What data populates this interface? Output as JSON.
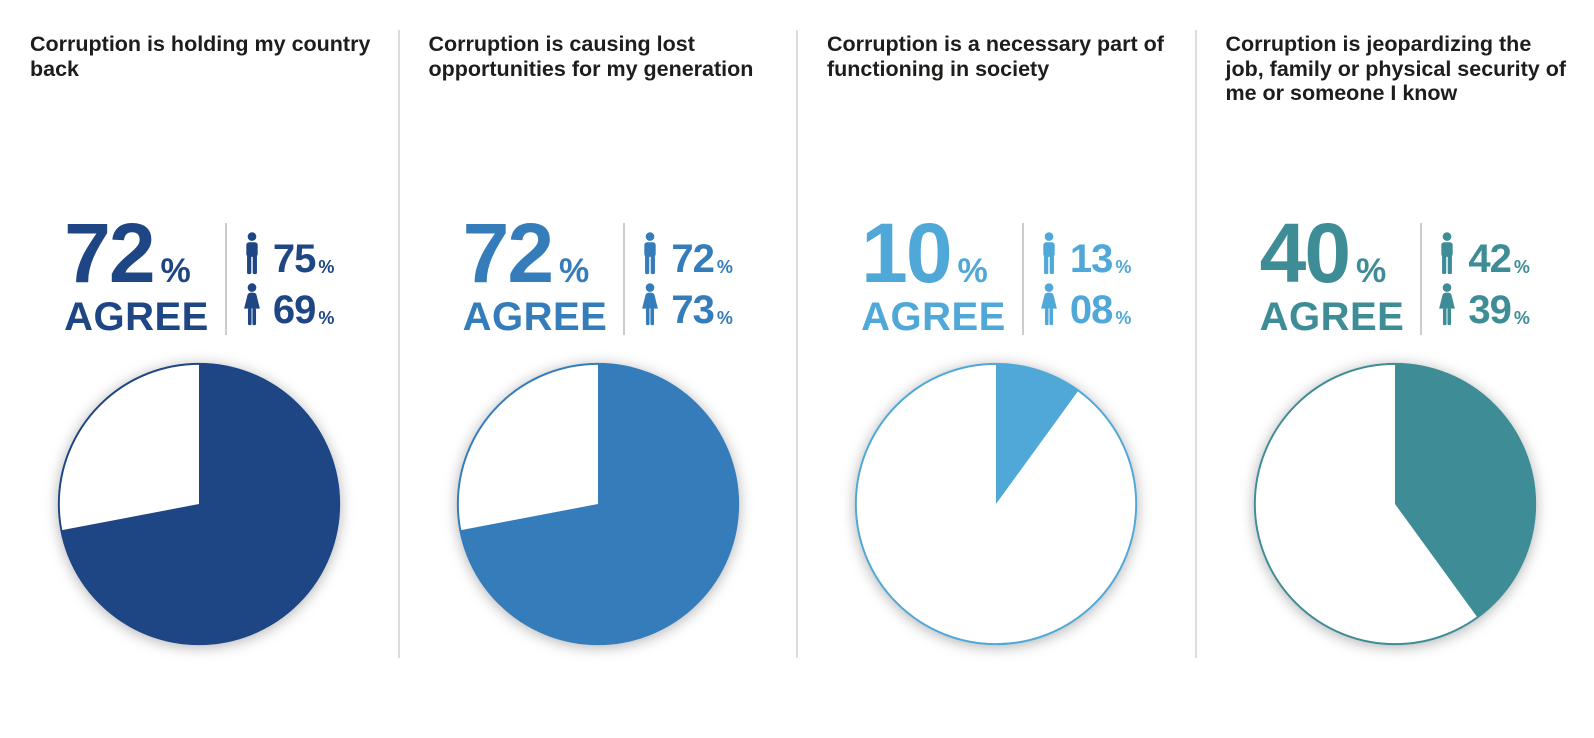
{
  "percent_sign": "%",
  "panels": [
    {
      "title": "Corruption is holding my country back",
      "agree_pct": 72,
      "agree_value": "72",
      "agree_label": "AGREE",
      "male_value": "75",
      "female_value": "69",
      "color": "#1e4584"
    },
    {
      "title": "Corruption is causing lost opportunities for my generation",
      "agree_pct": 72,
      "agree_value": "72",
      "agree_label": "AGREE",
      "male_value": "72",
      "female_value": "73",
      "color": "#357cbb"
    },
    {
      "title": "Corruption is a necessary part of functioning in society",
      "agree_pct": 10,
      "agree_value": "10",
      "agree_label": "AGREE",
      "male_value": "13",
      "female_value": "08",
      "color": "#4fa8d8"
    },
    {
      "title": "Corruption is jeopardizing the job, family or physical security of me or someone I know",
      "agree_pct": 40,
      "agree_value": "40",
      "agree_label": "AGREE",
      "male_value": "42",
      "female_value": "39",
      "color": "#3e8d96"
    }
  ],
  "chart_data": [
    {
      "type": "pie",
      "title": "Corruption is holding my country back",
      "labels": [
        "Agree",
        "Remainder"
      ],
      "values": [
        72,
        28
      ],
      "overall_agree_pct": 72,
      "male_agree_pct": 75,
      "female_agree_pct": 69,
      "slice_color": "#1e4584",
      "remainder_color": "#ffffff",
      "start_angle_deg": 0,
      "direction": "clockwise",
      "legend": "none"
    },
    {
      "type": "pie",
      "title": "Corruption is causing lost opportunities for my generation",
      "labels": [
        "Agree",
        "Remainder"
      ],
      "values": [
        72,
        28
      ],
      "overall_agree_pct": 72,
      "male_agree_pct": 72,
      "female_agree_pct": 73,
      "slice_color": "#357cbb",
      "remainder_color": "#ffffff",
      "start_angle_deg": 0,
      "direction": "clockwise",
      "legend": "none"
    },
    {
      "type": "pie",
      "title": "Corruption is a necessary part of functioning in society",
      "labels": [
        "Agree",
        "Remainder"
      ],
      "values": [
        10,
        90
      ],
      "overall_agree_pct": 10,
      "male_agree_pct": 13,
      "female_agree_pct": 8,
      "slice_color": "#4fa8d8",
      "remainder_color": "#ffffff",
      "start_angle_deg": 0,
      "direction": "clockwise",
      "legend": "none"
    },
    {
      "type": "pie",
      "title": "Corruption is jeopardizing the job, family or physical security of me or someone I know",
      "labels": [
        "Agree",
        "Remainder"
      ],
      "values": [
        40,
        60
      ],
      "overall_agree_pct": 40,
      "male_agree_pct": 42,
      "female_agree_pct": 39,
      "slice_color": "#3e8d96",
      "remainder_color": "#ffffff",
      "start_angle_deg": 0,
      "direction": "clockwise",
      "legend": "none"
    }
  ]
}
